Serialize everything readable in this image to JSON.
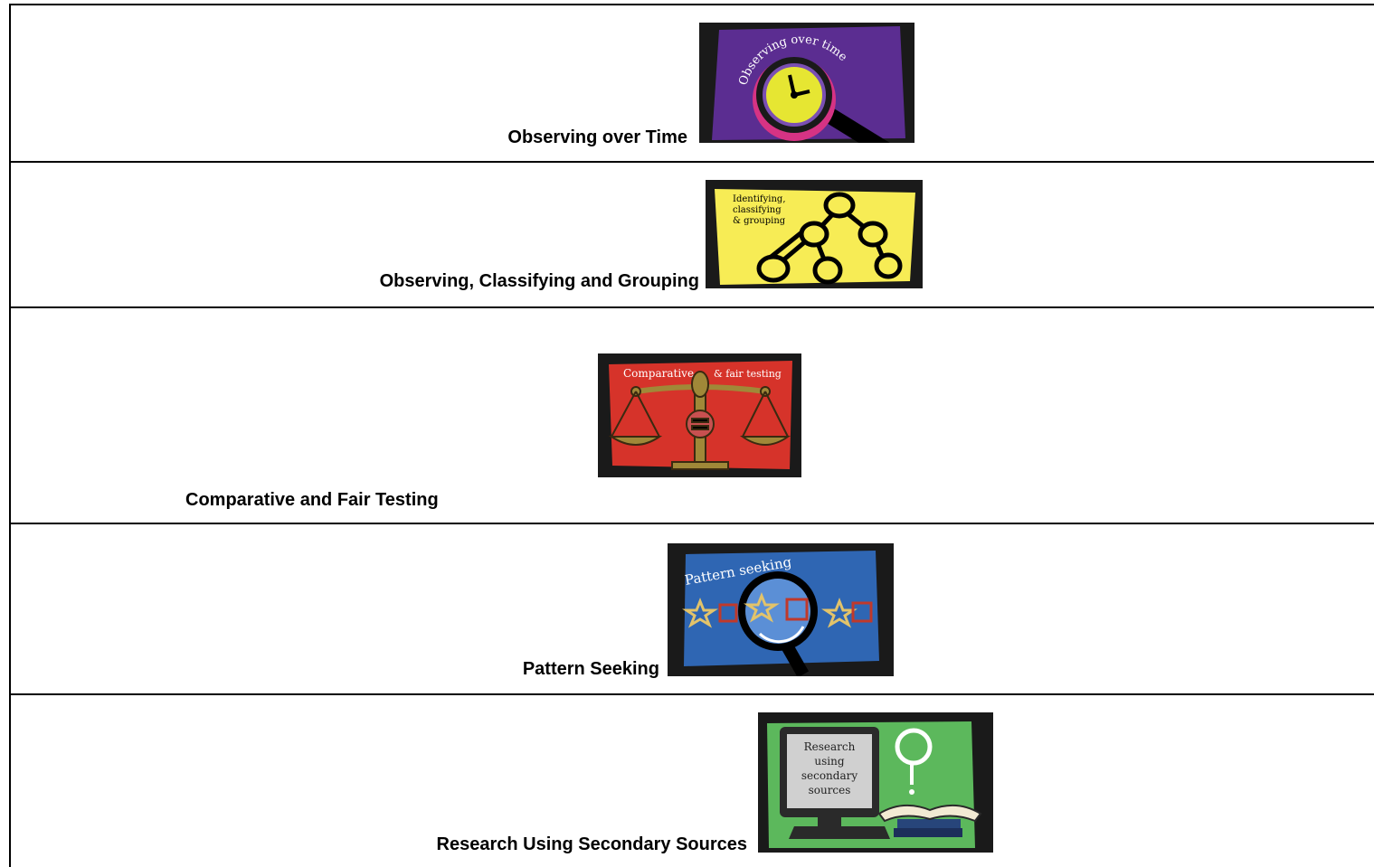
{
  "rows": [
    {
      "label": "Observing over Time",
      "image_text": [
        "Observing over time"
      ]
    },
    {
      "label": "Observing, Classifying and Grouping",
      "image_text": [
        "Identifying,",
        "classifying",
        "& grouping"
      ]
    },
    {
      "label": "Comparative and Fair Testing",
      "image_text": [
        "Comparative",
        "& fair testing"
      ]
    },
    {
      "label": "Pattern Seeking",
      "image_text": [
        "Pattern seeking"
      ]
    },
    {
      "label": "Research Using Secondary Sources",
      "image_text": [
        "Research",
        "using",
        "secondary",
        "sources"
      ]
    }
  ]
}
